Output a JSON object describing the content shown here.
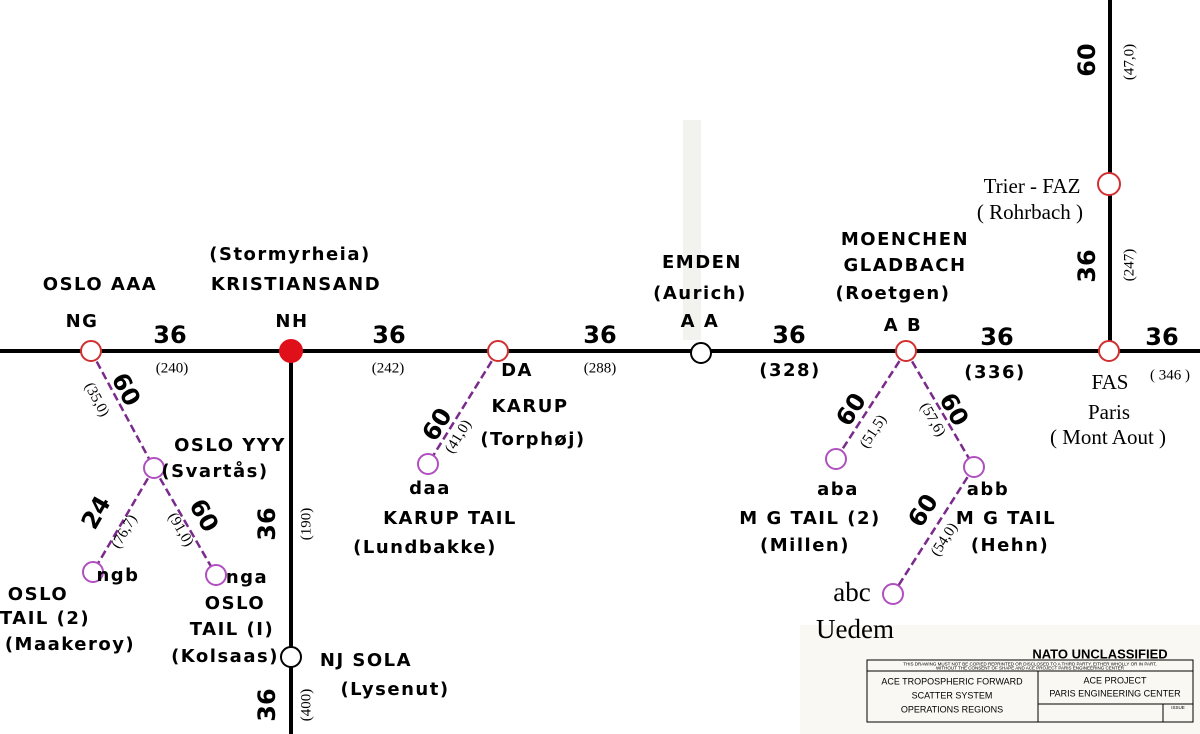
{
  "nodes": [
    {
      "code": "NG",
      "name": [
        "OSLO AAA"
      ]
    },
    {
      "code": "NH",
      "name": [
        "(Stormyrheia)",
        "KRISTIANSAND"
      ]
    },
    {
      "code": "DA",
      "name": [
        "KARUP",
        "(Torphøj)"
      ]
    },
    {
      "code": "A A",
      "name": [
        "EMDEN",
        "(Aurich)"
      ]
    },
    {
      "code": "A B",
      "name": [
        "MOENCHEN",
        "GLADBACH",
        "(Roetgen)"
      ]
    },
    {
      "code": "FAS",
      "name": [
        "Paris",
        "( Mont Aout )"
      ]
    },
    {
      "code": "Trier - FAZ",
      "name": [
        "( Rohrbach )"
      ]
    },
    {
      "name": [
        "OSLO YYY",
        "(Svartås)"
      ]
    },
    {
      "code": "ngb",
      "name": [
        "OSLO",
        "TAIL (2)",
        "(Maakeroy)"
      ]
    },
    {
      "code": "nga",
      "name": [
        "OSLO",
        "TAIL (I)",
        "(Kolsaas)"
      ]
    },
    {
      "code": "NJ SOLA",
      "name": [
        "(Lysenut)"
      ]
    },
    {
      "code": "daa",
      "name": [
        "KARUP TAIL",
        "(Lundbakke)"
      ]
    },
    {
      "code": "aba",
      "name": [
        "M G TAIL (2)",
        "(Millen)"
      ]
    },
    {
      "code": "abb",
      "name": [
        "M G TAIL",
        "(Hehn)"
      ]
    },
    {
      "code": "abc",
      "name": [
        "Uedem"
      ]
    }
  ],
  "links": [
    {
      "channels": 36,
      "distance": "(240)"
    },
    {
      "channels": 36,
      "distance": "(242)"
    },
    {
      "channels": 36,
      "distance": "(288)"
    },
    {
      "channels": 36,
      "distance": "(328)"
    },
    {
      "channels": 36,
      "distance": "(336)"
    },
    {
      "channels": 36,
      "distance": "( 346 )"
    },
    {
      "channels": 60,
      "distance": "(47,0)"
    },
    {
      "channels": 36,
      "distance": "(247)"
    },
    {
      "channels": 36,
      "distance": "(190)"
    },
    {
      "channels": 36,
      "distance": "(400)"
    },
    {
      "channels": 60,
      "distance": "(35,0)"
    },
    {
      "channels": 24,
      "distance": "(76,7)"
    },
    {
      "channels": 60,
      "distance": "(91,0)"
    },
    {
      "channels": 60,
      "distance": "(41,0)"
    },
    {
      "channels": 60,
      "distance": "(51,5)"
    },
    {
      "channels": 60,
      "distance": "(57,6)"
    },
    {
      "channels": 60,
      "distance": "(54,0)"
    }
  ],
  "title_block": {
    "classification": "NATO UNCLASSIFIED",
    "notice": [
      "THIS DRAWING MUST NOT BE COPIED REPRINTED OR DISCLOSED TO A THIRD PARTY, EITHER WHOLLY OR IN PART,",
      "WITHOUT THE CONSENT OF SHAPE AND ACE PROJECT PARIS ENGINEERING CENTER"
    ],
    "system": [
      "ACE TROPOSPHERIC FORWARD",
      "SCATTER SYSTEM",
      "OPERATIONS REGIONS"
    ],
    "office": [
      "ACE PROJECT",
      "PARIS ENGINEERING CENTER"
    ],
    "issue": "ISSUE"
  }
}
